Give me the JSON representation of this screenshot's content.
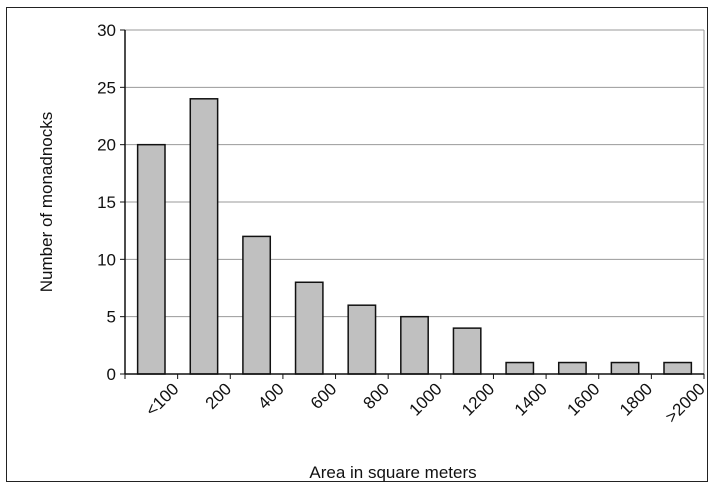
{
  "chart_data": {
    "type": "bar",
    "categories": [
      "<100",
      "200",
      "400",
      "600",
      "800",
      "1000",
      "1200",
      "1400",
      "1600",
      "1800",
      ">2000"
    ],
    "values": [
      20,
      24,
      12,
      8,
      6,
      5,
      4,
      1,
      1,
      1,
      1
    ],
    "xlabel": "Area in square meters",
    "ylabel": "Number of monadnocks",
    "ylim": [
      0,
      30
    ],
    "yticks": [
      0,
      5,
      10,
      15,
      20,
      25,
      30
    ],
    "grid": true,
    "colors": {
      "bar": "#c0c0c0",
      "bar_edge": "#111111",
      "grid": "#999999"
    }
  }
}
